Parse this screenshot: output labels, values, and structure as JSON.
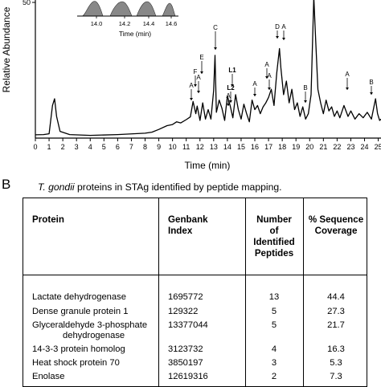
{
  "panel_a": {
    "chart_data": {
      "type": "line",
      "title": "",
      "xlabel": "Time (min)",
      "ylabel": "Relative Abundance",
      "xlim": [
        0,
        25.2
      ],
      "ylim": [
        0,
        50
      ],
      "x_ticks": [
        0,
        1,
        2,
        3,
        4,
        5,
        6,
        7,
        8,
        9,
        10,
        11,
        12,
        13,
        14,
        15,
        16,
        17,
        18,
        19,
        20,
        21,
        22,
        23,
        24,
        25
      ],
      "y_ticks": [
        50
      ],
      "grid": false,
      "series": [
        {
          "x": [
            0.0,
            0.6,
            1.0,
            1.25,
            1.4,
            1.55,
            1.8,
            2.5,
            4.0,
            6.0,
            8.0,
            8.5,
            9.0,
            9.6,
            10.0,
            10.3,
            10.6,
            11.0,
            11.3,
            11.5,
            11.7,
            11.8,
            12.0,
            12.2,
            12.4,
            12.6,
            12.8,
            13.0,
            13.1,
            13.2,
            13.4,
            13.6,
            13.8,
            14.0,
            14.2,
            14.4,
            14.6,
            14.8,
            15.0,
            15.2,
            15.4,
            15.6,
            15.8,
            16.0,
            16.2,
            16.4,
            16.6,
            16.8,
            17.0,
            17.2,
            17.4,
            17.6,
            17.8,
            17.9,
            18.1,
            18.3,
            18.5,
            18.7,
            18.9,
            19.1,
            19.3,
            19.5,
            19.7,
            19.9,
            20.1,
            20.3,
            20.45,
            20.6,
            20.8,
            21.0,
            21.2,
            21.4,
            21.6,
            21.8,
            22.0,
            22.2,
            22.5,
            22.8,
            23.0,
            23.3,
            23.6,
            23.9,
            24.2,
            24.5,
            24.7,
            24.8,
            24.95,
            25.1,
            25.2
          ],
          "y": [
            1.2,
            1.3,
            1.6,
            12,
            14.5,
            8,
            2.5,
            1.3,
            1.0,
            1.3,
            1.8,
            2.2,
            3.2,
            4.6,
            5.0,
            6.0,
            5.6,
            6.8,
            7.8,
            13.5,
            9.0,
            11.8,
            6.5,
            13.0,
            7.0,
            10.5,
            7.0,
            17.5,
            30.5,
            9.5,
            14.0,
            11.0,
            6.5,
            15.5,
            12.0,
            7.5,
            16.0,
            10.5,
            7.0,
            12.5,
            9.0,
            6.0,
            14.0,
            10.5,
            12.0,
            9.0,
            11.5,
            13.0,
            15.0,
            18.0,
            12.0,
            24.0,
            33.0,
            26.0,
            16.0,
            21.0,
            13.0,
            18.0,
            10.5,
            13.0,
            8.0,
            11.5,
            7.0,
            9.0,
            16.0,
            52.0,
            35.0,
            18.0,
            13.0,
            9.0,
            14.0,
            10.0,
            11.5,
            8.0,
            10.0,
            7.5,
            12.0,
            8.0,
            10.0,
            7.0,
            9.0,
            7.5,
            9.5,
            7.0,
            12.0,
            14.5,
            9.0,
            6.5,
            7.0
          ]
        }
      ],
      "annotations": [
        "A",
        "F",
        "A",
        "E",
        "C",
        "L1",
        "L2",
        "A",
        "A",
        "A",
        "A",
        "D",
        "A",
        "B",
        "A",
        "B"
      ],
      "inset": {
        "xlabel": "Time (min)",
        "x_ticks": [
          "14.0",
          "14.2",
          "14.4",
          "14.6"
        ]
      }
    }
  },
  "panel_b": {
    "letter": "B",
    "caption_italic": "T. gondii",
    "caption_rest": " proteins in STAg identified by peptide mapping.",
    "columns": {
      "protein": "Protein",
      "genbank": [
        "Genbank",
        "Index"
      ],
      "peptides": [
        "Number",
        "of",
        "Identified",
        "Peptides"
      ],
      "coverage": [
        "% Sequence",
        "Coverage"
      ]
    },
    "rows": [
      {
        "protein": [
          "Lactate dehydrogenase"
        ],
        "index": "1695772",
        "peptides": "13",
        "coverage": "44.4"
      },
      {
        "protein": [
          "Dense granule protein 1"
        ],
        "index": "129322",
        "peptides": "5",
        "coverage": "27.3"
      },
      {
        "protein": [
          "Glyceraldehyde 3-phosphate",
          "dehydrogenase"
        ],
        "index": "13377044",
        "peptides": "5",
        "coverage": "21.7"
      },
      {
        "protein": [
          "14-3-3 protein homolog"
        ],
        "index": "3123732",
        "peptides": "4",
        "coverage": "16.3"
      },
      {
        "protein": [
          "Heat shock protein 70"
        ],
        "index": "3850197",
        "peptides": "3",
        "coverage": "5.3"
      },
      {
        "protein": [
          "Enolase"
        ],
        "index": "12619316",
        "peptides": "2",
        "coverage": "7.3"
      }
    ]
  }
}
